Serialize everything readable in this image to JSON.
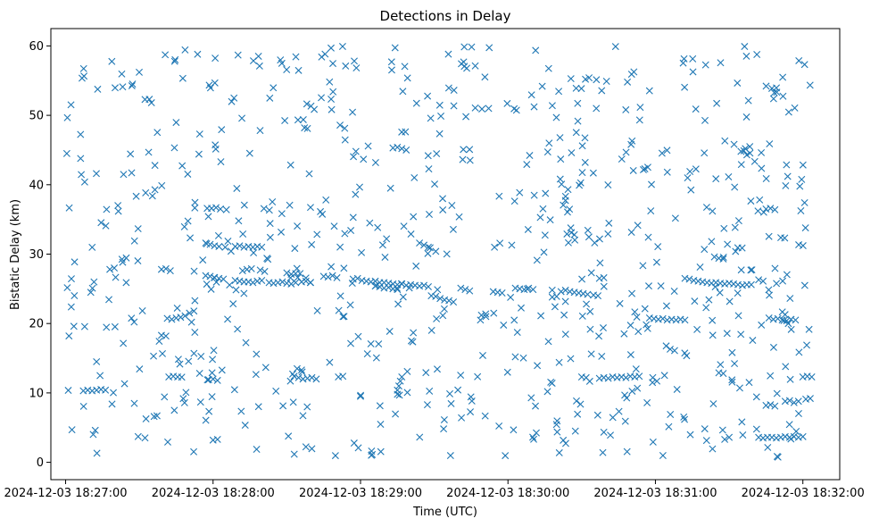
{
  "chart_data": {
    "type": "scatter",
    "title": "Detections in Delay",
    "xlabel": "Time (UTC)",
    "ylabel": "Bistatic Delay (km)",
    "marker": "x",
    "color": "#1f77b4",
    "xlim": [
      -0.1,
      5.25
    ],
    "ylim": [
      -2.5,
      62.5
    ],
    "xticks": [
      0,
      1,
      2,
      3,
      4,
      5
    ],
    "xtick_labels": [
      "2024-12-03 18:27:00",
      "2024-12-03 18:28:00",
      "2024-12-03 18:29:00",
      "2024-12-03 18:30:00",
      "2024-12-03 18:31:00",
      "2024-12-03 18:32:00"
    ],
    "yticks": [
      0,
      10,
      20,
      30,
      40,
      50,
      60
    ],
    "ytick_labels": [
      "0",
      "10",
      "20",
      "30",
      "40",
      "50",
      "60"
    ],
    "grid": false,
    "series": [
      {
        "name": "detections",
        "track_points": [
          [
            0.12,
            10.3
          ],
          [
            0.15,
            10.4
          ],
          [
            0.18,
            10.3
          ],
          [
            0.21,
            10.4
          ],
          [
            0.24,
            10.5
          ],
          [
            0.27,
            10.4
          ],
          [
            0.3,
            27.8
          ],
          [
            0.33,
            28.0
          ],
          [
            0.65,
            27.8
          ],
          [
            0.68,
            27.9
          ],
          [
            0.71,
            27.6
          ],
          [
            0.6,
            6.6
          ],
          [
            0.62,
            6.7
          ],
          [
            0.65,
            18.3
          ],
          [
            0.68,
            18.2
          ],
          [
            0.72,
            20.6
          ],
          [
            0.75,
            20.8
          ],
          [
            0.78,
            20.9
          ],
          [
            0.81,
            21.1
          ],
          [
            0.84,
            21.5
          ],
          [
            0.87,
            21.8
          ],
          [
            0.7,
            12.3
          ],
          [
            0.73,
            12.4
          ],
          [
            0.76,
            12.3
          ],
          [
            0.95,
            26.9
          ],
          [
            0.98,
            26.8
          ],
          [
            1.01,
            26.6
          ],
          [
            1.04,
            26.5
          ],
          [
            1.07,
            26.4
          ],
          [
            0.95,
            31.6
          ],
          [
            0.98,
            31.4
          ],
          [
            1.01,
            31.2
          ],
          [
            1.04,
            31.1
          ],
          [
            0.96,
            36.6
          ],
          [
            0.99,
            36.6
          ],
          [
            1.02,
            36.7
          ],
          [
            1.05,
            36.5
          ],
          [
            0.97,
            11.9
          ],
          [
            1.0,
            12.0
          ],
          [
            1.03,
            11.8
          ],
          [
            1.0,
            3.2
          ],
          [
            1.03,
            3.3
          ],
          [
            1.15,
            31.1
          ],
          [
            1.18,
            31.2
          ],
          [
            1.21,
            31.0
          ],
          [
            1.24,
            31.1
          ],
          [
            1.27,
            31.0
          ],
          [
            1.3,
            31.1
          ],
          [
            1.33,
            31.0
          ],
          [
            1.15,
            26.2
          ],
          [
            1.18,
            26.1
          ],
          [
            1.21,
            26.0
          ],
          [
            1.24,
            26.0
          ],
          [
            1.27,
            25.9
          ],
          [
            1.3,
            26.1
          ],
          [
            1.33,
            26.2
          ],
          [
            1.2,
            27.6
          ],
          [
            1.23,
            27.8
          ],
          [
            1.26,
            27.9
          ],
          [
            1.32,
            27.7
          ],
          [
            1.35,
            27.5
          ],
          [
            1.38,
            25.9
          ],
          [
            1.41,
            25.8
          ],
          [
            1.44,
            25.9
          ],
          [
            1.47,
            26.0
          ],
          [
            1.5,
            25.8
          ],
          [
            1.53,
            25.7
          ],
          [
            1.56,
            25.9
          ],
          [
            1.6,
            26.0
          ],
          [
            1.63,
            26.1
          ],
          [
            1.66,
            25.9
          ],
          [
            1.5,
            27.3
          ],
          [
            1.53,
            27.1
          ],
          [
            1.56,
            27.2
          ],
          [
            1.59,
            27.2
          ],
          [
            1.55,
            12.4
          ],
          [
            1.58,
            12.2
          ],
          [
            1.61,
            12.0
          ],
          [
            1.64,
            12.1
          ],
          [
            1.67,
            12.2
          ],
          [
            1.7,
            12.0
          ],
          [
            1.57,
            13.5
          ],
          [
            1.6,
            13.3
          ],
          [
            1.62,
            48.2
          ],
          [
            1.64,
            48.1
          ],
          [
            1.75,
            26.8
          ],
          [
            1.78,
            26.7
          ],
          [
            1.81,
            26.9
          ],
          [
            1.84,
            26.6
          ],
          [
            1.85,
            12.3
          ],
          [
            1.88,
            12.4
          ],
          [
            1.95,
            26.4
          ],
          [
            1.98,
            26.5
          ],
          [
            2.01,
            26.2
          ],
          [
            2.04,
            26.1
          ],
          [
            2.07,
            26.0
          ],
          [
            2.1,
            26.1
          ],
          [
            2.13,
            25.9
          ],
          [
            2.16,
            25.9
          ],
          [
            2.19,
            25.8
          ],
          [
            2.22,
            25.7
          ],
          [
            2.25,
            25.6
          ],
          [
            2.28,
            25.7
          ],
          [
            2.31,
            25.5
          ],
          [
            2.34,
            25.6
          ],
          [
            2.37,
            25.5
          ],
          [
            2.4,
            25.4
          ],
          [
            2.43,
            25.5
          ],
          [
            2.46,
            25.3
          ],
          [
            2.1,
            25.4
          ],
          [
            2.13,
            25.3
          ],
          [
            2.16,
            25.1
          ],
          [
            2.19,
            25.2
          ],
          [
            2.22,
            25.0
          ],
          [
            2.25,
            24.9
          ],
          [
            2.22,
            45.3
          ],
          [
            2.25,
            45.4
          ],
          [
            2.28,
            45.2
          ],
          [
            2.31,
            45.0
          ],
          [
            2.25,
            10.4
          ],
          [
            2.26,
            11.0
          ],
          [
            2.27,
            11.7
          ],
          [
            2.28,
            12.3
          ],
          [
            2.25,
            9.8
          ],
          [
            2.4,
            31.6
          ],
          [
            2.43,
            31.3
          ],
          [
            2.46,
            31.0
          ],
          [
            2.48,
            24.0
          ],
          [
            2.51,
            23.9
          ],
          [
            2.54,
            23.6
          ],
          [
            2.57,
            23.4
          ],
          [
            2.6,
            23.3
          ],
          [
            2.63,
            23.1
          ],
          [
            2.68,
            25.1
          ],
          [
            2.71,
            24.9
          ],
          [
            2.74,
            24.7
          ],
          [
            2.82,
            21.2
          ],
          [
            2.85,
            21.0
          ],
          [
            2.9,
            24.6
          ],
          [
            2.93,
            24.5
          ],
          [
            2.96,
            24.4
          ],
          [
            3.05,
            25.1
          ],
          [
            3.08,
            25.0
          ],
          [
            3.11,
            24.9
          ],
          [
            3.14,
            25.1
          ],
          [
            3.17,
            24.9
          ],
          [
            3.3,
            23.8
          ],
          [
            3.33,
            23.9
          ],
          [
            3.36,
            24.6
          ],
          [
            3.39,
            24.8
          ],
          [
            3.42,
            24.6
          ],
          [
            3.45,
            24.5
          ],
          [
            3.48,
            24.4
          ],
          [
            3.51,
            24.3
          ],
          [
            3.54,
            24.2
          ],
          [
            3.4,
            32.9
          ],
          [
            3.43,
            33.1
          ],
          [
            3.45,
            32.8
          ],
          [
            3.5,
            12.3
          ],
          [
            3.53,
            12.2
          ],
          [
            3.58,
            24.1
          ],
          [
            3.61,
            24.0
          ],
          [
            3.62,
            12.1
          ],
          [
            3.65,
            12.2
          ],
          [
            3.68,
            12.1
          ],
          [
            3.71,
            12.3
          ],
          [
            3.74,
            12.2
          ],
          [
            3.77,
            12.3
          ],
          [
            3.8,
            12.2
          ],
          [
            3.83,
            12.4
          ],
          [
            3.86,
            12.3
          ],
          [
            3.89,
            12.4
          ],
          [
            3.62,
            26.5
          ],
          [
            3.65,
            26.6
          ],
          [
            3.96,
            20.8
          ],
          [
            3.99,
            20.7
          ],
          [
            4.02,
            20.6
          ],
          [
            4.05,
            20.7
          ],
          [
            4.08,
            20.5
          ],
          [
            4.11,
            20.6
          ],
          [
            4.14,
            20.5
          ],
          [
            4.17,
            20.6
          ],
          [
            4.2,
            20.5
          ],
          [
            3.98,
            11.5
          ],
          [
            4.01,
            11.7
          ],
          [
            4.1,
            16.3
          ],
          [
            4.13,
            16.1
          ],
          [
            4.2,
            26.5
          ],
          [
            4.23,
            26.4
          ],
          [
            4.26,
            26.2
          ],
          [
            4.29,
            26.1
          ],
          [
            4.32,
            26.0
          ],
          [
            4.35,
            25.9
          ],
          [
            4.38,
            25.8
          ],
          [
            4.41,
            25.9
          ],
          [
            4.44,
            25.8
          ],
          [
            4.47,
            25.7
          ],
          [
            4.5,
            25.8
          ],
          [
            4.53,
            25.7
          ],
          [
            4.56,
            25.6
          ],
          [
            4.59,
            25.5
          ],
          [
            4.62,
            25.6
          ],
          [
            4.65,
            25.6
          ],
          [
            4.43,
            12.9
          ],
          [
            4.46,
            12.8
          ],
          [
            4.4,
            29.6
          ],
          [
            4.43,
            29.4
          ],
          [
            4.46,
            29.3
          ],
          [
            4.47,
            3.3
          ],
          [
            4.5,
            3.6
          ],
          [
            4.58,
            44.8
          ],
          [
            4.61,
            45.2
          ],
          [
            4.64,
            45.5
          ],
          [
            4.62,
            44.3
          ],
          [
            4.6,
            44.9
          ],
          [
            4.7,
            26.3
          ],
          [
            4.73,
            26.1
          ],
          [
            4.75,
            36.5
          ],
          [
            4.78,
            36.6
          ],
          [
            4.81,
            36.4
          ],
          [
            4.75,
            8.2
          ],
          [
            4.78,
            8.3
          ],
          [
            4.81,
            8.1
          ],
          [
            4.77,
            20.8
          ],
          [
            4.8,
            20.6
          ],
          [
            4.83,
            20.7
          ],
          [
            4.86,
            20.5
          ],
          [
            4.89,
            20.4
          ],
          [
            4.92,
            20.6
          ],
          [
            4.95,
            20.5
          ],
          [
            4.7,
            3.6
          ],
          [
            4.73,
            3.5
          ],
          [
            4.76,
            3.6
          ],
          [
            4.79,
            3.6
          ],
          [
            4.82,
            3.5
          ],
          [
            4.85,
            3.6
          ],
          [
            4.88,
            3.7
          ],
          [
            4.91,
            3.6
          ],
          [
            4.94,
            3.7
          ],
          [
            4.97,
            3.6
          ],
          [
            5.0,
            3.7
          ],
          [
            4.88,
            8.8
          ],
          [
            4.91,
            8.9
          ],
          [
            4.94,
            8.6
          ],
          [
            4.97,
            8.8
          ],
          [
            5.0,
            12.3
          ],
          [
            5.03,
            12.4
          ],
          [
            5.06,
            12.3
          ],
          [
            5.02,
            9.1
          ],
          [
            5.05,
            9.2
          ]
        ],
        "noise": {
          "count": 720,
          "seed": 20241203,
          "x_range": [
            0,
            5.05
          ],
          "y_range": [
            0.5,
            60
          ],
          "note": "uniform random clutter detections filling the plot area"
        }
      }
    ]
  }
}
